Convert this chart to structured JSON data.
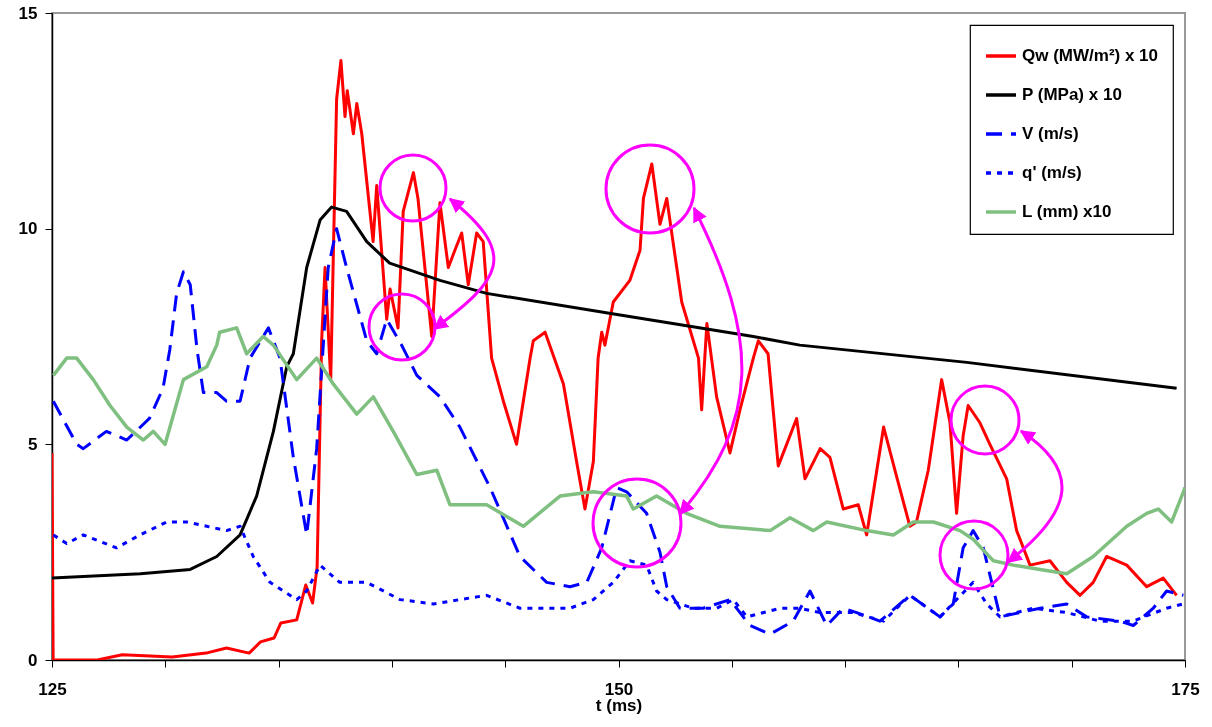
{
  "chart_data": {
    "type": "line",
    "xlabel": "t (ms)",
    "xlim": [
      125,
      175
    ],
    "ylim": [
      0,
      15
    ],
    "xticks": [
      125,
      {
        "value": 130,
        "label": null
      },
      {
        "value": 135,
        "label": null
      },
      {
        "value": 140,
        "label": null
      },
      {
        "value": 145,
        "label": null
      },
      150,
      {
        "value": 155,
        "label": null
      },
      {
        "value": 160,
        "label": null
      },
      {
        "value": 165,
        "label": null
      },
      {
        "value": 170,
        "label": null
      },
      175
    ],
    "yticks": [
      0,
      5,
      10,
      15
    ],
    "grid": false,
    "legend": "top right",
    "series": [
      {
        "name": "Qw (MW/m²) x 10",
        "color": "#ff0000",
        "line_style": "solid",
        "x": [
          125,
          125.05,
          127,
          128.1,
          130.3,
          131.8,
          132.7,
          133.7,
          134.2,
          134.8,
          135.1,
          135.8,
          136.2,
          136.5,
          136.7,
          136.9,
          137.05,
          137.3,
          137.56,
          137.75,
          137.93,
          138.03,
          138.3,
          138.45,
          138.67,
          138.89,
          139.17,
          139.33,
          139.77,
          139.92,
          140.27,
          140.5,
          140.95,
          141.15,
          141.76,
          142.12,
          142.49,
          142.78,
          143.08,
          143.37,
          143.74,
          144.03,
          144.4,
          144.92,
          145.5,
          146.1,
          146.24,
          146.76,
          147.57,
          148.15,
          148.52,
          148.89,
          149.1,
          149.26,
          149.4,
          149.77,
          150.5,
          150.95,
          151.1,
          151.47,
          151.83,
          152.13,
          152.57,
          152.79,
          153.53,
          153.67,
          153.9,
          154.33,
          154.92,
          155.36,
          155.95,
          156.17,
          156.6,
          157.05,
          157.42,
          157.86,
          158.23,
          158.9,
          159.33,
          159.92,
          160.58,
          160.95,
          161.7,
          162.3,
          162.86,
          163.15,
          163.67,
          164.26,
          164.63,
          164.92,
          165.21,
          165.43,
          165.95,
          166.39,
          167.13,
          167.57,
          168.16,
          169.04,
          169.78,
          170.37,
          170.95,
          171.54,
          172.43,
          173.31,
          174.04,
          174.63
        ],
        "values": [
          4.8,
          0,
          0,
          0.12,
          0.07,
          0.16,
          0.28,
          0.16,
          0.42,
          0.51,
          0.86,
          0.93,
          1.74,
          1.32,
          2.16,
          7.4,
          9.1,
          6.5,
          13.0,
          13.9,
          12.6,
          13.2,
          12.2,
          12.9,
          12.2,
          11.1,
          9.7,
          11.0,
          7.9,
          8.6,
          7.7,
          10.4,
          11.3,
          10.7,
          7.5,
          10.6,
          9.1,
          9.5,
          9.9,
          8.7,
          9.9,
          9.7,
          7.0,
          6.0,
          5.0,
          7.0,
          7.4,
          7.6,
          6.4,
          4.6,
          3.5,
          4.6,
          7.0,
          7.6,
          7.3,
          8.3,
          8.8,
          9.5,
          10.7,
          11.5,
          10.1,
          10.7,
          9.1,
          8.3,
          7.0,
          5.8,
          7.8,
          6.1,
          4.8,
          5.8,
          7.0,
          7.4,
          7.1,
          4.5,
          5.0,
          5.6,
          4.2,
          4.9,
          4.7,
          3.5,
          3.6,
          2.9,
          5.4,
          4.2,
          3.1,
          3.2,
          4.4,
          6.5,
          5.5,
          3.4,
          5.2,
          5.9,
          5.5,
          5.0,
          4.2,
          3.0,
          2.2,
          2.3,
          1.8,
          1.5,
          1.8,
          2.4,
          2.2,
          1.7,
          1.9,
          1.5
        ]
      },
      {
        "name": "P (MPa) x 10",
        "color": "#000000",
        "line_style": "solid",
        "x": [
          125,
          128.9,
          131.1,
          132.27,
          133.3,
          134.03,
          134.77,
          135.36,
          135.65,
          136.24,
          136.83,
          137.34,
          138.0,
          138.89,
          139.9,
          142.12,
          144.18,
          150.07,
          155.95,
          158.0,
          165.37,
          174.63
        ],
        "values": [
          1.9,
          2.0,
          2.1,
          2.4,
          2.9,
          3.8,
          5.3,
          6.8,
          7.1,
          9.1,
          10.2,
          10.5,
          10.4,
          9.7,
          9.2,
          8.8,
          8.5,
          8.0,
          7.5,
          7.3,
          6.9,
          6.3
        ]
      },
      {
        "name": "V (m/s)",
        "color": "#0000ff",
        "line_style": "dashed",
        "x": [
          125.06,
          126.09,
          126.38,
          127.4,
          128.3,
          129.3,
          129.9,
          130.2,
          130.5,
          130.8,
          131.1,
          131.4,
          131.68,
          132.27,
          132.7,
          133.3,
          133.74,
          134.55,
          135.06,
          135.65,
          136.24,
          136.68,
          137.19,
          137.56,
          138.0,
          138.89,
          139.33,
          139.77,
          140.43,
          141.1,
          142.12,
          143.0,
          144.33,
          145.65,
          146.83,
          147.86,
          148.6,
          149.26,
          149.92,
          150.36,
          151.24,
          151.83,
          152.13,
          152.71,
          153.74,
          154.92,
          155.8,
          156.69,
          157.71,
          158.45,
          159.19,
          159.92,
          160.51,
          161.54,
          162.86,
          164.19,
          164.77,
          165.21,
          165.65,
          166.1,
          166.84,
          167.72,
          168.6,
          169.78,
          170.66,
          172.13,
          172.72,
          173.6,
          174.19,
          174.93
        ],
        "values": [
          6.0,
          5.0,
          4.9,
          5.3,
          5.1,
          5.6,
          6.3,
          7.2,
          8.5,
          9.0,
          8.7,
          7.2,
          6.2,
          6.2,
          6.0,
          6.0,
          7.0,
          7.7,
          7.0,
          4.7,
          2.9,
          4.9,
          9.1,
          10.0,
          9.1,
          7.4,
          7.1,
          7.9,
          7.3,
          6.6,
          6.1,
          5.4,
          4.0,
          2.4,
          1.8,
          1.7,
          1.8,
          2.6,
          4.0,
          3.9,
          3.4,
          2.5,
          1.7,
          1.2,
          1.2,
          1.4,
          0.8,
          0.6,
          0.9,
          1.6,
          0.8,
          1.2,
          1.1,
          0.9,
          1.5,
          1.0,
          1.3,
          2.6,
          3.0,
          2.6,
          1.0,
          1.1,
          1.2,
          1.3,
          1.0,
          0.9,
          0.8,
          1.2,
          1.6,
          1.5
        ]
      },
      {
        "name": "q' (m/s)",
        "color": "#0000ff",
        "line_style": "dotted",
        "x": [
          125.06,
          125.65,
          126.38,
          127.85,
          128.88,
          130.06,
          130.94,
          131.83,
          132.7,
          133.3,
          133.88,
          134.62,
          135.8,
          136.24,
          136.83,
          137.7,
          138.89,
          140.36,
          141.83,
          143.0,
          144.18,
          145.65,
          147.86,
          148.89,
          149.77,
          150.5,
          151.24,
          151.68,
          152.13,
          153.3,
          154.33,
          155.07,
          155.66,
          157.13,
          158.0,
          158.9,
          160.36,
          161.7,
          162.86,
          164.19,
          165.65,
          166.25,
          166.84,
          168.3,
          169.78,
          171.25,
          172.7,
          174.19,
          174.93
        ],
        "values": [
          2.9,
          2.7,
          2.9,
          2.6,
          2.9,
          3.2,
          3.2,
          3.1,
          3.0,
          3.1,
          2.4,
          1.8,
          1.4,
          1.6,
          2.2,
          1.8,
          1.8,
          1.4,
          1.3,
          1.4,
          1.5,
          1.2,
          1.2,
          1.4,
          1.8,
          2.3,
          2.2,
          1.6,
          1.4,
          1.2,
          1.2,
          1.4,
          1.0,
          1.2,
          1.2,
          1.1,
          1.1,
          0.9,
          1.5,
          1.0,
          1.8,
          1.3,
          1.0,
          1.2,
          1.1,
          0.9,
          0.9,
          1.2,
          1.3
        ]
      },
      {
        "name": "L (mm) x10",
        "color": "#7fbf7f",
        "line_style": "solid",
        "x": [
          125.06,
          125.65,
          126.09,
          126.82,
          127.56,
          128.3,
          129.03,
          129.47,
          129.99,
          130.8,
          131.83,
          132.27,
          132.4,
          133.15,
          133.59,
          134.32,
          134.77,
          135.8,
          136.68,
          137.41,
          138.45,
          139.18,
          140.06,
          141.1,
          141.98,
          142.56,
          144.18,
          145.8,
          147.42,
          148.89,
          150.36,
          150.65,
          151.68,
          153.0,
          154.48,
          156.69,
          157.57,
          158.6,
          159.19,
          160.95,
          162.13,
          163.01,
          163.9,
          165.07,
          165.65,
          166.54,
          167.42,
          168.6,
          169.78,
          170.95,
          172.43,
          173.31,
          173.82,
          174.41,
          174.93,
          175
        ],
        "values": [
          6.6,
          7.0,
          7.0,
          6.5,
          5.9,
          5.4,
          5.1,
          5.3,
          5.0,
          6.5,
          6.8,
          7.3,
          7.6,
          7.7,
          7.1,
          7.5,
          7.3,
          6.5,
          7.0,
          6.4,
          5.7,
          6.1,
          5.3,
          4.3,
          4.4,
          3.6,
          3.6,
          3.1,
          3.8,
          3.9,
          3.8,
          3.5,
          3.8,
          3.4,
          3.1,
          3.0,
          3.3,
          3.0,
          3.2,
          3.0,
          2.9,
          3.2,
          3.2,
          3.0,
          2.8,
          2.3,
          2.2,
          2.1,
          2.0,
          2.4,
          3.1,
          3.4,
          3.5,
          3.2,
          3.9,
          4.0
        ]
      }
    ]
  }
}
